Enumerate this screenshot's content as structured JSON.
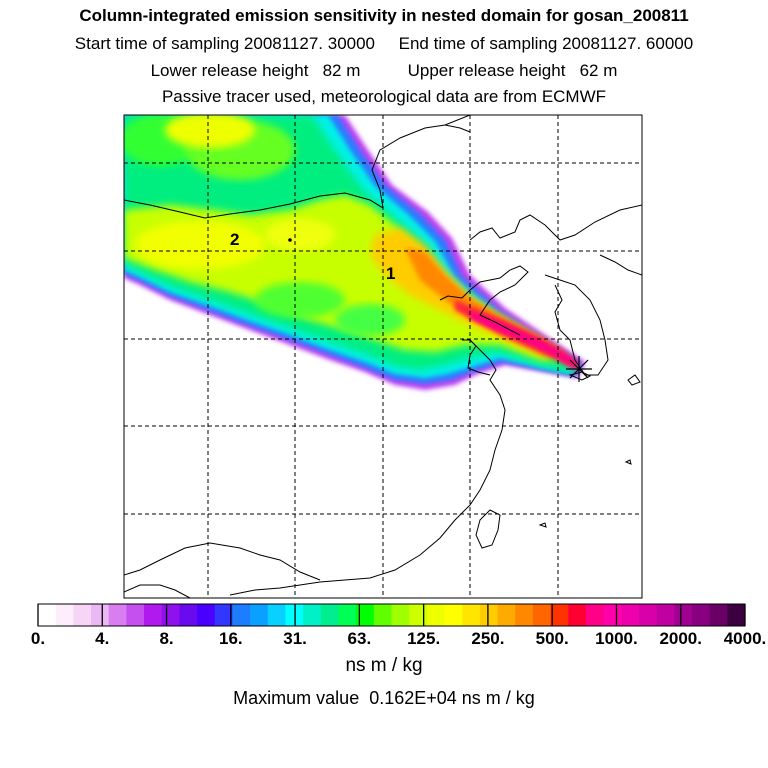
{
  "title_lines": [
    "Column-integrated emission sensitivity in nested domain for gosan_200811",
    "Start time of sampling 20081127. 30000     End time of sampling 20081127. 60000",
    "Lower release height   82 m          Upper release height   62 m",
    "Passive tracer used, meteorological data are from ECMWF"
  ],
  "map": {
    "cluster_labels": [
      "1",
      "2"
    ],
    "receptor_marker": "star-icon"
  },
  "colorbar": {
    "colors": [
      "#ffffff",
      "#fdeefc",
      "#f6d5f7",
      "#eab8f2",
      "#d97ef0",
      "#c650ef",
      "#b01aee",
      "#8f11ee",
      "#6a0aee",
      "#4a00ff",
      "#3336ff",
      "#1e7cff",
      "#0aa0ff",
      "#08d0ff",
      "#00ffff",
      "#00f0c8",
      "#00ee90",
      "#00ff55",
      "#00ff00",
      "#60ff00",
      "#a0ff00",
      "#ccff00",
      "#eeff00",
      "#ffff00",
      "#ffe600",
      "#ffcc00",
      "#ffaa00",
      "#ff8800",
      "#ff6600",
      "#ff3300",
      "#ff0033",
      "#ff0088",
      "#ff00aa",
      "#ee00aa",
      "#d800a8",
      "#c000a0",
      "#a00090",
      "#880080",
      "#6a0066",
      "#3c0040"
    ],
    "tick_labels": [
      "0.",
      "4.",
      "8.",
      "16.",
      "31.",
      "63.",
      "125.",
      "250.",
      "500.",
      "1000.",
      "2000.",
      "4000."
    ],
    "unit": "ns m / kg"
  },
  "max_value_text": "Maximum value  0.162E+04 ns m / kg"
}
